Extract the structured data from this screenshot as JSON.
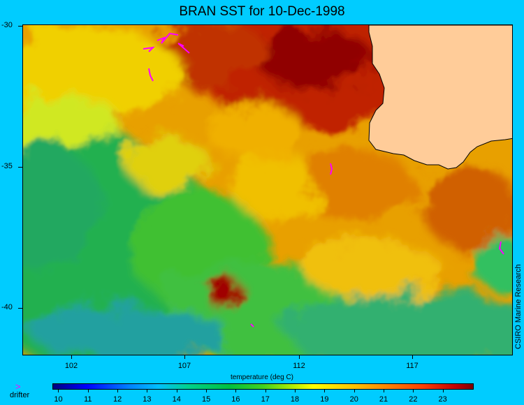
{
  "title": "BRAN SST for 10-Dec-1998",
  "map": {
    "lat_labels": [
      "-30",
      "-35",
      "-40"
    ],
    "lon_labels": [
      "102",
      "107",
      "112",
      "117"
    ],
    "credit": "CSIRO Marine Research",
    "land_color": "#ffcc99",
    "drifter_color": "#ff00ff"
  },
  "colorbar": {
    "title": "temperature (deg C)",
    "labels": [
      "10",
      "11",
      "12",
      "13",
      "14",
      "15",
      "16",
      "17",
      "18",
      "19",
      "20",
      "21",
      "22",
      "23"
    ],
    "range": [
      9.8,
      24
    ]
  },
  "legend": {
    "symbol": ">",
    "label": "drifter"
  }
}
